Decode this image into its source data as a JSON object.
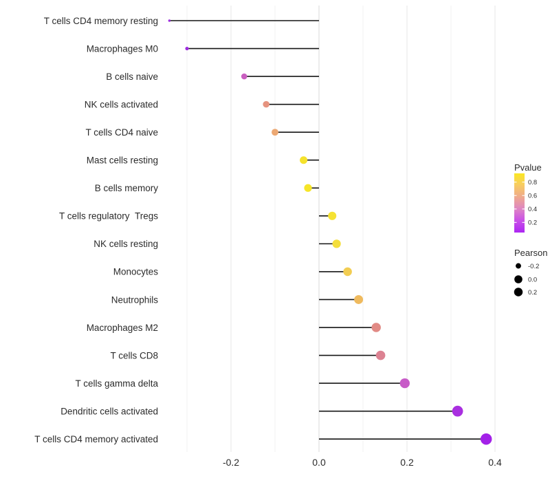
{
  "page": {
    "background": "#ffffff"
  },
  "chart_data": {
    "type": "scatter",
    "subtype": "lollipop",
    "title": "",
    "xlabel": "",
    "ylabel": "",
    "grid": true,
    "xlim": [
      -0.355,
      0.44
    ],
    "x_tick_values": [
      -0.2,
      0.0,
      0.2,
      0.4
    ],
    "x_tick_labels": [
      "-0.2",
      "0.0",
      "0.2",
      "0.4"
    ],
    "x_minor_gridlines": [
      -0.3,
      -0.1,
      0.1,
      0.3
    ],
    "baseline_x": 0.0,
    "rows": [
      {
        "label": "T cells CD4 memory resting",
        "pearson": -0.34,
        "pvalue": 0.1,
        "color": "#9B2EDC"
      },
      {
        "label": "Macrophages M0",
        "pearson": -0.3,
        "pvalue": 0.12,
        "color": "#9D2BDF"
      },
      {
        "label": "B cells naive",
        "pearson": -0.17,
        "pvalue": 0.35,
        "color": "#C95FC0"
      },
      {
        "label": "NK cells activated",
        "pearson": -0.12,
        "pvalue": 0.55,
        "color": "#E6937F"
      },
      {
        "label": "T cells CD4 naive",
        "pearson": -0.1,
        "pvalue": 0.62,
        "color": "#ECA873"
      },
      {
        "label": "Mast cells resting",
        "pearson": -0.035,
        "pvalue": 0.88,
        "color": "#F5E22C"
      },
      {
        "label": "B cells memory",
        "pearson": -0.025,
        "pvalue": 0.88,
        "color": "#F6E528"
      },
      {
        "label": "T cells regulatory  Tregs",
        "pearson": 0.03,
        "pvalue": 0.86,
        "color": "#F5E233"
      },
      {
        "label": "NK cells resting",
        "pearson": 0.04,
        "pvalue": 0.84,
        "color": "#F4DE3C"
      },
      {
        "label": "Monocytes",
        "pearson": 0.065,
        "pvalue": 0.72,
        "color": "#F2CD52"
      },
      {
        "label": "Neutrophils",
        "pearson": 0.09,
        "pvalue": 0.66,
        "color": "#EFBA5E"
      },
      {
        "label": "Macrophages M2",
        "pearson": 0.13,
        "pvalue": 0.52,
        "color": "#E18A85"
      },
      {
        "label": "T cells CD8",
        "pearson": 0.14,
        "pvalue": 0.48,
        "color": "#DC8292"
      },
      {
        "label": "T cells gamma delta",
        "pearson": 0.195,
        "pvalue": 0.3,
        "color": "#C75BC7"
      },
      {
        "label": "Dendritic cells activated",
        "pearson": 0.315,
        "pvalue": 0.14,
        "color": "#A92FE0"
      },
      {
        "label": "T cells CD4 memory activated",
        "pearson": 0.38,
        "pvalue": 0.07,
        "color": "#A321E8"
      }
    ],
    "legend": {
      "position": "right",
      "pvalue": {
        "title": "Pvalue",
        "tick_labels": [
          "0.8",
          "0.6",
          "0.4",
          "0.2"
        ],
        "tick_values": [
          0.8,
          0.6,
          0.4,
          0.2
        ],
        "bar_range_top_to_bottom": [
          0.93,
          0.05
        ],
        "gradient_top_to_bottom": [
          "#FBE723",
          "#F7CB62",
          "#EFA98D",
          "#DE85C4",
          "#C94FE8",
          "#AC26F2"
        ]
      },
      "pearson": {
        "title": "Pearson",
        "items": [
          {
            "label": "-0.2",
            "value": -0.2
          },
          {
            "label": "0.0",
            "value": 0.0
          },
          {
            "label": "0.2",
            "value": 0.2
          }
        ],
        "dot_color": "#000000"
      }
    },
    "colors": {
      "segment": "#141414",
      "axis_text": "#2b2b2b",
      "grid_major": "#e7e7e7",
      "grid_minor": "#f2f2f2",
      "grid_zero": "#d9d9d9"
    }
  }
}
